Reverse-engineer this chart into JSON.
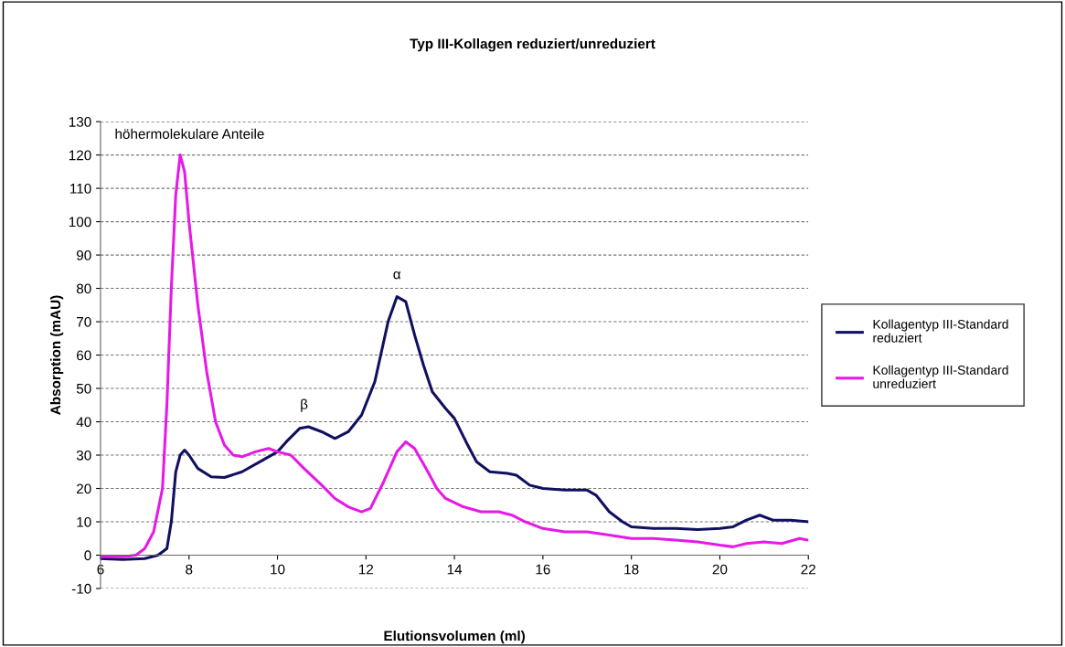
{
  "chart_data": {
    "type": "line",
    "title": "Typ III-Kollagen reduziert/unreduziert",
    "xlabel": "Elutionsvolumen (ml)",
    "ylabel": "Absorption (mAU)",
    "xlim": [
      6,
      22
    ],
    "xticks": [
      6,
      8,
      10,
      12,
      14,
      16,
      18,
      20,
      22
    ],
    "ylim": [
      -10,
      130
    ],
    "yticks": [
      -10,
      0,
      10,
      20,
      30,
      40,
      50,
      60,
      70,
      80,
      90,
      100,
      110,
      120,
      130
    ],
    "grid": "y",
    "legend": "right",
    "marker": "none",
    "line_style": "solid",
    "annotations": [
      "höhermolekulare Anteile",
      {
        "text": "β",
        "x": 10.6,
        "y": 38.5
      },
      {
        "text": "α",
        "x": 12.7,
        "y": 77.5
      }
    ],
    "series": [
      {
        "name": "Kollagentyp III-Standard\nreduziert",
        "color": "#101060",
        "x": [
          6,
          6.5,
          7.0,
          7.3,
          7.5,
          7.6,
          7.7,
          7.8,
          7.9,
          8.0,
          8.2,
          8.5,
          8.8,
          9.2,
          9.6,
          10.0,
          10.2,
          10.5,
          10.7,
          11.0,
          11.3,
          11.6,
          11.9,
          12.2,
          12.5,
          12.7,
          12.9,
          13.1,
          13.3,
          13.5,
          13.8,
          14.0,
          14.3,
          14.5,
          14.8,
          15.2,
          15.4,
          15.7,
          16.0,
          16.5,
          16.8,
          17.0,
          17.2,
          17.5,
          17.8,
          18.0,
          18.5,
          19.0,
          19.5,
          20.0,
          20.3,
          20.6,
          20.9,
          21.2,
          21.6,
          22.0
        ],
        "values": [
          -1,
          -1.3,
          -1,
          0,
          2,
          10,
          25,
          30,
          31.5,
          30,
          26,
          23.5,
          23.3,
          25,
          28,
          31,
          34,
          38,
          38.5,
          37,
          35,
          37,
          42,
          52,
          70,
          77.5,
          76,
          66,
          57,
          49,
          44,
          41,
          33,
          28,
          25,
          24.5,
          24,
          21,
          20,
          19.5,
          19.5,
          19.5,
          18,
          13,
          10,
          8.5,
          8,
          8,
          7.7,
          8,
          8.5,
          10.5,
          12,
          10.5,
          10.5,
          10
        ]
      },
      {
        "name": "Kollagentyp III-Standard\nunreduziert",
        "color": "#e619e6",
        "x": [
          6,
          6.5,
          6.8,
          7.0,
          7.2,
          7.4,
          7.5,
          7.6,
          7.7,
          7.8,
          7.9,
          8.0,
          8.2,
          8.4,
          8.6,
          8.8,
          9.0,
          9.2,
          9.5,
          9.8,
          10.0,
          10.3,
          10.6,
          11.0,
          11.3,
          11.6,
          11.9,
          12.1,
          12.4,
          12.7,
          12.9,
          13.1,
          13.4,
          13.6,
          13.8,
          14.2,
          14.6,
          15.0,
          15.3,
          15.6,
          16.0,
          16.5,
          17.0,
          17.5,
          18.0,
          18.5,
          19.0,
          19.5,
          20.0,
          20.3,
          20.6,
          21.0,
          21.4,
          21.8,
          22.0
        ],
        "values": [
          -0.5,
          -0.5,
          0,
          2,
          7,
          20,
          45,
          80,
          108,
          120,
          115,
          100,
          75,
          55,
          40,
          33,
          30,
          29.5,
          31,
          32,
          31,
          30,
          26,
          21,
          17,
          14.5,
          13,
          14,
          22,
          31,
          34,
          32,
          25,
          20,
          17,
          14.5,
          13,
          13,
          12,
          10,
          8,
          7,
          7,
          6,
          5,
          5,
          4.5,
          4,
          3,
          2.5,
          3.5,
          4,
          3.5,
          5,
          4.5
        ]
      }
    ]
  }
}
